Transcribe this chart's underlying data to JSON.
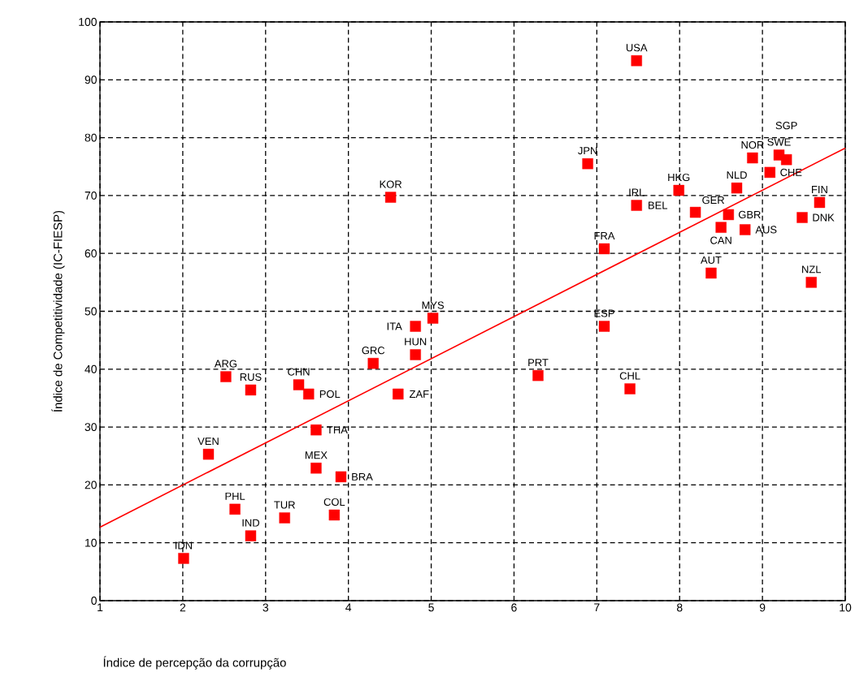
{
  "chart_data": {
    "type": "scatter",
    "xlabel": "Índice de percepção da corrupção",
    "ylabel": "Índice de Competitividade (IC-FIESP)",
    "xlim": [
      1,
      10
    ],
    "xticks": [
      1,
      2,
      3,
      4,
      5,
      6,
      7,
      8,
      9,
      10
    ],
    "ylim": [
      0,
      100
    ],
    "yticks": [
      0,
      10,
      20,
      30,
      40,
      50,
      60,
      70,
      80,
      90,
      100
    ],
    "grid": true,
    "series": [
      {
        "color": "#ff0000",
        "marker": "square",
        "x": [
          7.48,
          6.89,
          7.48,
          7.99,
          8.19,
          8.59,
          8.5,
          8.79,
          8.69,
          8.88,
          9.2,
          9.29,
          9.09,
          7.09,
          8.38,
          9.59,
          9.48,
          9.69,
          4.51,
          5.02,
          4.81,
          4.81,
          4.3,
          6.29,
          7.09,
          4.6,
          7.4,
          2.52,
          2.82,
          3.4,
          3.52,
          3.61,
          2.31,
          3.61,
          3.91,
          2.63,
          2.82,
          3.23,
          3.83,
          2.01
        ],
        "values": [
          93.3,
          75.5,
          68.3,
          70.9,
          67.1,
          66.7,
          64.5,
          64.1,
          71.3,
          76.5,
          77.0,
          76.2,
          74.0,
          60.8,
          56.6,
          55.0,
          66.2,
          68.8,
          69.7,
          48.8,
          47.4,
          42.5,
          41.0,
          38.9,
          47.4,
          35.7,
          36.6,
          38.7,
          36.4,
          37.3,
          35.7,
          29.5,
          25.3,
          22.9,
          21.4,
          15.8,
          11.2,
          14.3,
          14.8,
          7.3
        ]
      },
      {
        "type": "line",
        "color": "#ff0000",
        "marker": "none",
        "x": [
          1,
          10
        ],
        "values": [
          12.7,
          78.2
        ]
      }
    ],
    "annotations": [
      {
        "text": "USA",
        "x": 7.48,
        "y": 93.3
      },
      {
        "text": "JPN",
        "x": 6.89,
        "y": 75.5
      },
      {
        "text": "IRL",
        "x": 7.48,
        "y": 68.3
      },
      {
        "text": "BEL",
        "x": 7.48,
        "y": 68.3
      },
      {
        "text": "HKG",
        "x": 7.99,
        "y": 70.9
      },
      {
        "text": "GER",
        "x": 8.19,
        "y": 67.1
      },
      {
        "text": "GBR",
        "x": 8.59,
        "y": 66.7
      },
      {
        "text": "CAN",
        "x": 8.5,
        "y": 64.5
      },
      {
        "text": "AUS",
        "x": 8.79,
        "y": 64.1
      },
      {
        "text": "NLD",
        "x": 8.69,
        "y": 71.3
      },
      {
        "text": "NOR",
        "x": 8.88,
        "y": 76.5
      },
      {
        "text": "SWE",
        "x": 9.2,
        "y": 77.0
      },
      {
        "text": "SGP",
        "x": 9.29,
        "y": 76.2
      },
      {
        "text": "CHE",
        "x": 9.09,
        "y": 74.0
      },
      {
        "text": "FRA",
        "x": 7.09,
        "y": 60.8
      },
      {
        "text": "AUT",
        "x": 8.38,
        "y": 56.6
      },
      {
        "text": "NZL",
        "x": 9.59,
        "y": 55.0
      },
      {
        "text": "DNK",
        "x": 9.48,
        "y": 66.2
      },
      {
        "text": "FIN",
        "x": 9.69,
        "y": 68.8
      },
      {
        "text": "KOR",
        "x": 4.51,
        "y": 69.7
      },
      {
        "text": "MYS",
        "x": 5.02,
        "y": 48.8
      },
      {
        "text": "ITA",
        "x": 4.81,
        "y": 47.4
      },
      {
        "text": "HUN",
        "x": 4.81,
        "y": 42.5
      },
      {
        "text": "GRC",
        "x": 4.3,
        "y": 41.0
      },
      {
        "text": "PRT",
        "x": 6.29,
        "y": 38.9
      },
      {
        "text": "ESP",
        "x": 7.09,
        "y": 47.4
      },
      {
        "text": "ZAF",
        "x": 4.6,
        "y": 35.7
      },
      {
        "text": "CHL",
        "x": 7.4,
        "y": 36.6
      },
      {
        "text": "ARG",
        "x": 2.52,
        "y": 38.7
      },
      {
        "text": "RUS",
        "x": 2.82,
        "y": 36.4
      },
      {
        "text": "CHN",
        "x": 3.4,
        "y": 37.3
      },
      {
        "text": "POL",
        "x": 3.52,
        "y": 35.7
      },
      {
        "text": "THA",
        "x": 3.61,
        "y": 29.5
      },
      {
        "text": "VEN",
        "x": 2.31,
        "y": 25.3
      },
      {
        "text": "MEX",
        "x": 3.61,
        "y": 22.9
      },
      {
        "text": "BRA",
        "x": 3.91,
        "y": 21.4
      },
      {
        "text": "PHL",
        "x": 2.63,
        "y": 15.8
      },
      {
        "text": "IND",
        "x": 2.82,
        "y": 11.2
      },
      {
        "text": "TUR",
        "x": 3.23,
        "y": 14.3
      },
      {
        "text": "COL",
        "x": 3.83,
        "y": 14.8
      },
      {
        "text": "IDN",
        "x": 2.01,
        "y": 7.3
      }
    ]
  }
}
